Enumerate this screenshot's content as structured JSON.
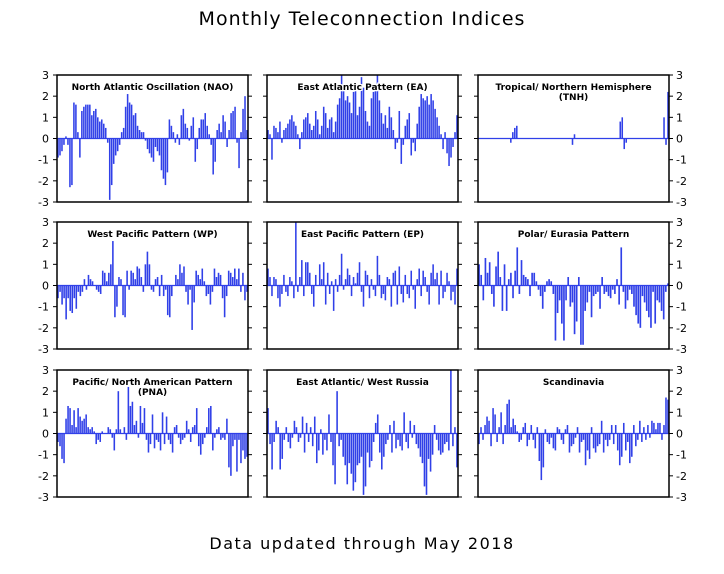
{
  "page": {
    "title": "Monthly Teleconnection Indices",
    "footer": "Data updated through May 2018"
  },
  "style": {
    "bar_color": "#3040e8",
    "axis_color": "#000000"
  },
  "chart_data": [
    {
      "type": "bar",
      "title": "North Atlantic Oscillation (NAO)",
      "ylim": [
        -3,
        3
      ],
      "yticks": [
        3,
        2,
        1,
        0,
        -1,
        -2,
        -3
      ],
      "ytick_side": "left",
      "values": [
        -0.9,
        -0.8,
        -0.6,
        -0.3,
        0.1,
        -0.3,
        -2.3,
        -2.2,
        1.7,
        1.6,
        0.3,
        -0.9,
        1.3,
        1.5,
        1.6,
        1.6,
        1.6,
        1.1,
        1.3,
        1.4,
        1.0,
        0.8,
        0.9,
        0.7,
        0.5,
        -0.2,
        -2.9,
        -2.2,
        -1.2,
        -0.8,
        -0.6,
        -0.3,
        0.3,
        0.5,
        1.5,
        2.1,
        1.7,
        1.6,
        1.1,
        1.2,
        0.6,
        0.4,
        0.3,
        0.3,
        -0.1,
        -0.5,
        -0.7,
        -0.9,
        -1.1,
        -0.4,
        -0.6,
        -0.8,
        -1.5,
        -1.9,
        -2.2,
        -1.6,
        0.9,
        0.6,
        0.3,
        -0.2,
        0.2,
        -0.3,
        1.1,
        1.4,
        0.7,
        0.5,
        -0.1,
        0.6,
        1.0,
        -1.1,
        -0.5,
        0.5,
        0.9,
        0.9,
        1.2,
        0.6,
        0.2,
        -0.3,
        -1.7,
        -1.1,
        0.4,
        0.7,
        0.3,
        1.1,
        0.8,
        -0.4,
        0.4,
        1.2,
        1.3,
        1.5,
        -0.2,
        -1.4,
        0.3,
        1.4,
        2.0,
        0.4
      ]
    },
    {
      "type": "bar",
      "title": "East Atlantic Pattern (EA)",
      "ylim": [
        -3,
        3
      ],
      "yticks": [
        3,
        2,
        1,
        0,
        -1,
        -2,
        -3
      ],
      "ytick_side": "none",
      "values": [
        0.4,
        0.2,
        -1.0,
        0.6,
        0.5,
        0.3,
        0.8,
        -0.2,
        0.4,
        0.5,
        0.7,
        0.9,
        1.1,
        0.8,
        0.6,
        0.2,
        -0.5,
        0.3,
        0.9,
        1.0,
        1.2,
        0.7,
        0.4,
        0.6,
        1.3,
        0.9,
        0.2,
        0.6,
        1.5,
        1.2,
        0.5,
        0.9,
        1.0,
        0.3,
        0.8,
        1.6,
        1.9,
        3.0,
        2.5,
        1.8,
        2.0,
        1.7,
        1.2,
        2.2,
        2.6,
        1.1,
        1.5,
        2.9,
        2.4,
        1.3,
        0.8,
        0.6,
        1.9,
        2.2,
        2.5,
        3.0,
        1.8,
        1.2,
        0.7,
        1.1,
        0.5,
        1.5,
        1.0,
        0.4,
        -0.5,
        -0.2,
        1.3,
        -1.2,
        -0.3,
        0.6,
        0.9,
        1.2,
        -0.8,
        -0.2,
        -0.6,
        0.7,
        1.5,
        2.1,
        1.9,
        1.8,
        2.0,
        1.6,
        2.1,
        1.8,
        1.4,
        1.0,
        0.6,
        0.2,
        -0.5,
        0.3,
        -0.7,
        -1.3,
        -0.9,
        -0.4,
        0.3,
        1.1
      ]
    },
    {
      "type": "bar",
      "title": "Tropical/ Northern Hemisphere (TNH)",
      "ylim": [
        -3,
        3
      ],
      "yticks": [
        3,
        2,
        1,
        0,
        -1,
        -2,
        -3
      ],
      "ytick_side": "right",
      "values": [
        0,
        0,
        0,
        0,
        0,
        0,
        0,
        0,
        0,
        0,
        0,
        0,
        0,
        0,
        0,
        0,
        -0.2,
        0.3,
        0.5,
        0.6,
        0,
        0,
        0,
        0,
        0,
        0,
        0,
        0,
        0,
        0,
        0,
        0,
        0,
        0,
        0,
        0,
        0,
        0,
        0,
        0,
        0,
        0,
        0,
        0,
        0,
        0,
        0,
        -0.3,
        0.2,
        0,
        0,
        0,
        0,
        0,
        0,
        0,
        0,
        0,
        0,
        0,
        0,
        0,
        0,
        0,
        0,
        0,
        0,
        0,
        0,
        0,
        0,
        0.8,
        1.0,
        -0.5,
        -0.2,
        0,
        0,
        0,
        0,
        0,
        0,
        0,
        0,
        0,
        0,
        0,
        0,
        0,
        0,
        0,
        0,
        0,
        0,
        1.0,
        -0.3,
        2.2
      ]
    },
    {
      "type": "bar",
      "title": "West Pacific Pattern (WP)",
      "ylim": [
        -3,
        3
      ],
      "yticks": [
        3,
        2,
        1,
        0,
        -1,
        -2,
        -3
      ],
      "ytick_side": "left",
      "values": [
        -0.6,
        -0.3,
        -0.9,
        -0.6,
        -1.6,
        -0.6,
        -1.2,
        -1.3,
        -0.6,
        -1.1,
        -0.3,
        -0.5,
        -0.3,
        0.3,
        -0.2,
        0.5,
        0.3,
        0.2,
        0.0,
        -0.2,
        -0.3,
        -0.4,
        0.7,
        0.6,
        0.2,
        0.6,
        1.0,
        2.1,
        -1.5,
        -1.0,
        0.4,
        0.3,
        -1.4,
        -1.5,
        0.7,
        -0.2,
        0.7,
        0.6,
        0.3,
        0.9,
        0.8,
        0.4,
        -0.3,
        1.0,
        1.6,
        1.0,
        -0.2,
        -0.3,
        0.3,
        0.4,
        -0.5,
        0.5,
        -0.5,
        -0.2,
        -1.4,
        -1.5,
        -0.5,
        0.0,
        0.5,
        0.3,
        1.0,
        0.6,
        0.9,
        -0.3,
        -0.9,
        -0.2,
        -2.1,
        -0.8,
        0.7,
        0.5,
        0.3,
        0.8,
        0.2,
        -0.5,
        -0.4,
        -0.9,
        -0.3,
        0.8,
        0.4,
        0.6,
        0.5,
        -0.6,
        -1.5,
        -0.5,
        0.7,
        0.6,
        0.4,
        0.8,
        0.3,
        0.8,
        -0.3,
        0.6,
        -0.7,
        -0.3
      ]
    },
    {
      "type": "bar",
      "title": "East Pacific Pattern (EP)",
      "ylim": [
        -3,
        3
      ],
      "yticks": [
        3,
        2,
        1,
        0,
        -1,
        -2,
        -3
      ],
      "ytick_side": "none",
      "values": [
        0.8,
        0.4,
        -0.5,
        0.4,
        0.3,
        -0.6,
        -1.0,
        -0.4,
        0.5,
        -0.3,
        -0.5,
        0.4,
        0.2,
        -0.6,
        3.0,
        -0.3,
        0.4,
        1.2,
        -0.5,
        1.1,
        1.1,
        0.6,
        -0.4,
        -1.0,
        0.5,
        0.0,
        1.0,
        0.3,
        1.1,
        -0.9,
        0.6,
        -0.4,
        0.2,
        -1.2,
        0.3,
        -0.3,
        0.5,
        1.5,
        -0.2,
        0.3,
        0.8,
        0.5,
        -0.5,
        0.4,
        0.1,
        0.6,
        1.1,
        -0.3,
        -1.0,
        0.7,
        0.5,
        -0.6,
        0.3,
        -0.2,
        -0.5,
        1.4,
        0.5,
        -0.6,
        -0.4,
        -0.7,
        0.4,
        0.3,
        -1.0,
        0.6,
        0.7,
        -0.9,
        0.9,
        -0.4,
        -0.8,
        0.5,
        -0.4,
        -0.6,
        0.7,
        -0.2,
        -1.1,
        0.3,
        0.8,
        -0.5,
        0.7,
        0.4,
        -0.3,
        -0.9,
        0.6,
        1.0,
        0.3,
        0.6,
        -0.9,
        0.7,
        -0.6,
        -0.3,
        0.6,
        0.2,
        -0.7,
        -0.3,
        -0.9,
        0.8
      ]
    },
    {
      "type": "bar",
      "title": "Polar/ Eurasia Pattern",
      "ylim": [
        -3,
        3
      ],
      "yticks": [
        3,
        2,
        1,
        0,
        -1,
        -2,
        -3
      ],
      "ytick_side": "right",
      "values": [
        1.0,
        0.5,
        -0.7,
        1.3,
        0.6,
        1.1,
        -0.4,
        -1.0,
        0.9,
        1.6,
        0.4,
        -1.2,
        1.0,
        -1.2,
        0.3,
        0.6,
        -0.6,
        0.7,
        1.8,
        -0.4,
        1.2,
        0.5,
        0.4,
        0.3,
        -0.5,
        0.6,
        0.6,
        0.2,
        -0.2,
        -0.5,
        -1.1,
        -0.3,
        0.2,
        0.3,
        0.2,
        -0.4,
        -2.6,
        -1.3,
        -0.7,
        -1.8,
        -2.6,
        -0.7,
        0.4,
        -1.0,
        -0.8,
        -2.3,
        -1.7,
        0.4,
        -2.8,
        -2.8,
        -1.2,
        -0.8,
        -0.3,
        -1.5,
        -0.5,
        -0.4,
        -0.3,
        -1.1,
        0.4,
        -0.4,
        -0.3,
        -0.5,
        -0.6,
        -0.2,
        -0.4,
        0.3,
        -0.9,
        1.8,
        -0.3,
        -1.1,
        -0.7,
        -0.2,
        -0.4,
        -1.0,
        -1.4,
        -1.8,
        -2.0,
        -0.5,
        -0.8,
        -1.2,
        -1.5,
        -2.0,
        -0.3,
        -1.8,
        -0.7,
        -0.8,
        -1.2,
        -1.6,
        -0.3,
        0.1
      ]
    },
    {
      "type": "bar",
      "title": "Pacific/ North American Pattern (PNA)",
      "ylim": [
        -3,
        3
      ],
      "yticks": [
        3,
        2,
        1,
        0,
        -1,
        -2,
        -3
      ],
      "ytick_side": "left",
      "values": [
        -0.4,
        -0.6,
        -1.2,
        -1.4,
        0.7,
        1.3,
        1.2,
        0.4,
        1.1,
        0.3,
        1.2,
        0.8,
        0.6,
        0.7,
        0.9,
        0.3,
        0.2,
        0.3,
        0.1,
        -0.5,
        -0.3,
        -0.4,
        0.1,
        0.0,
        0.0,
        0.3,
        0.2,
        -0.2,
        -0.8,
        0.2,
        2.0,
        0.2,
        0.0,
        0.3,
        -0.3,
        2.2,
        1.3,
        1.5,
        0.4,
        0.6,
        -0.2,
        1.3,
        0.5,
        1.2,
        -0.3,
        -0.9,
        -0.5,
        0.9,
        -0.7,
        -0.3,
        -0.4,
        -0.8,
        1.0,
        -0.5,
        0.8,
        -0.3,
        -0.5,
        -0.9,
        0.3,
        0.4,
        -0.2,
        -0.5,
        -0.3,
        -0.2,
        0.6,
        0.2,
        -0.4,
        0.3,
        0.4,
        1.2,
        -0.6,
        -1.0,
        -0.5,
        -0.2,
        0.3,
        1.2,
        1.3,
        -0.8,
        -0.2,
        0.2,
        0.3,
        -0.3,
        -0.2,
        -0.3,
        0.7,
        -1.6,
        -2.0,
        -0.6,
        -0.3,
        -1.8,
        -0.3,
        -1.4,
        -0.8,
        -1.2,
        -1.1
      ]
    },
    {
      "type": "bar",
      "title": "East Atlantic/ West Russia",
      "ylim": [
        -3,
        3
      ],
      "yticks": [
        3,
        2,
        1,
        0,
        -1,
        -2,
        -3
      ],
      "ytick_side": "none",
      "values": [
        1.2,
        -0.5,
        -1.7,
        -0.4,
        0.6,
        0.3,
        -1.7,
        -1.2,
        -0.3,
        0.3,
        -0.4,
        -0.7,
        -0.2,
        0.6,
        0.3,
        -0.4,
        -0.2,
        0.8,
        -0.9,
        0.5,
        -0.4,
        0.3,
        -0.6,
        0.8,
        -1.4,
        -0.8,
        0.2,
        -1.0,
        -0.3,
        -0.8,
        0.9,
        -0.4,
        -1.5,
        -2.4,
        2.0,
        -0.6,
        -0.3,
        -1.1,
        -1.5,
        -2.4,
        -1.4,
        -1.9,
        -2.7,
        -2.3,
        -1.5,
        -1.4,
        -1.1,
        -2.9,
        -2.5,
        -0.9,
        -1.6,
        -1.3,
        -0.4,
        0.5,
        0.9,
        -0.9,
        -1.7,
        -1.1,
        -0.5,
        -0.3,
        0.4,
        -0.9,
        0.6,
        -0.7,
        -0.3,
        -0.6,
        -0.8,
        1.0,
        -0.4,
        -0.7,
        0.6,
        -0.2,
        0.4,
        -0.5,
        -0.7,
        -1.1,
        -1.4,
        -2.5,
        -2.9,
        -1.2,
        -1.8,
        -1.0,
        0.4,
        -0.3,
        -0.8,
        -1.0,
        -0.9,
        -0.5,
        -0.4,
        -0.8,
        3.0,
        -0.6,
        0.3,
        -1.6
      ]
    },
    {
      "type": "bar",
      "title": "Scandinavia",
      "ylim": [
        -3,
        3
      ],
      "yticks": [
        3,
        2,
        1,
        0,
        -1,
        -2,
        -3
      ],
      "ytick_side": "right",
      "values": [
        -0.5,
        0.3,
        -0.3,
        0.4,
        0.8,
        0.6,
        -0.6,
        1.2,
        0.9,
        -0.4,
        0.3,
        1.0,
        -0.5,
        0.4,
        1.4,
        1.6,
        0.3,
        0.7,
        0.4,
        0.1,
        -0.4,
        -0.3,
        0.3,
        0.5,
        -0.6,
        -0.3,
        0.4,
        -0.3,
        -0.7,
        0.3,
        -1.3,
        -2.2,
        -1.6,
        0.2,
        -0.4,
        -0.5,
        -0.2,
        -0.7,
        -0.8,
        0.3,
        0.2,
        -0.3,
        -0.5,
        0.2,
        0.4,
        -0.9,
        -0.6,
        -0.5,
        -0.2,
        0.3,
        -0.9,
        -0.4,
        -0.3,
        -1.5,
        -0.8,
        -1.2,
        0.3,
        -0.7,
        -0.9,
        -0.6,
        -0.5,
        0.6,
        -0.9,
        -0.3,
        -0.6,
        -0.3,
        0.4,
        -0.5,
        0.4,
        -0.8,
        -1.5,
        -1.1,
        0.5,
        -0.8,
        -0.4,
        -1.4,
        -1.1,
        0.4,
        -0.6,
        -0.3,
        0.6,
        -0.4,
        0.3,
        -0.3,
        0.4,
        -0.2,
        0.6,
        0.5,
        0.2,
        0.5,
        0.5,
        -0.3,
        0.4,
        1.7,
        1.6
      ]
    }
  ]
}
